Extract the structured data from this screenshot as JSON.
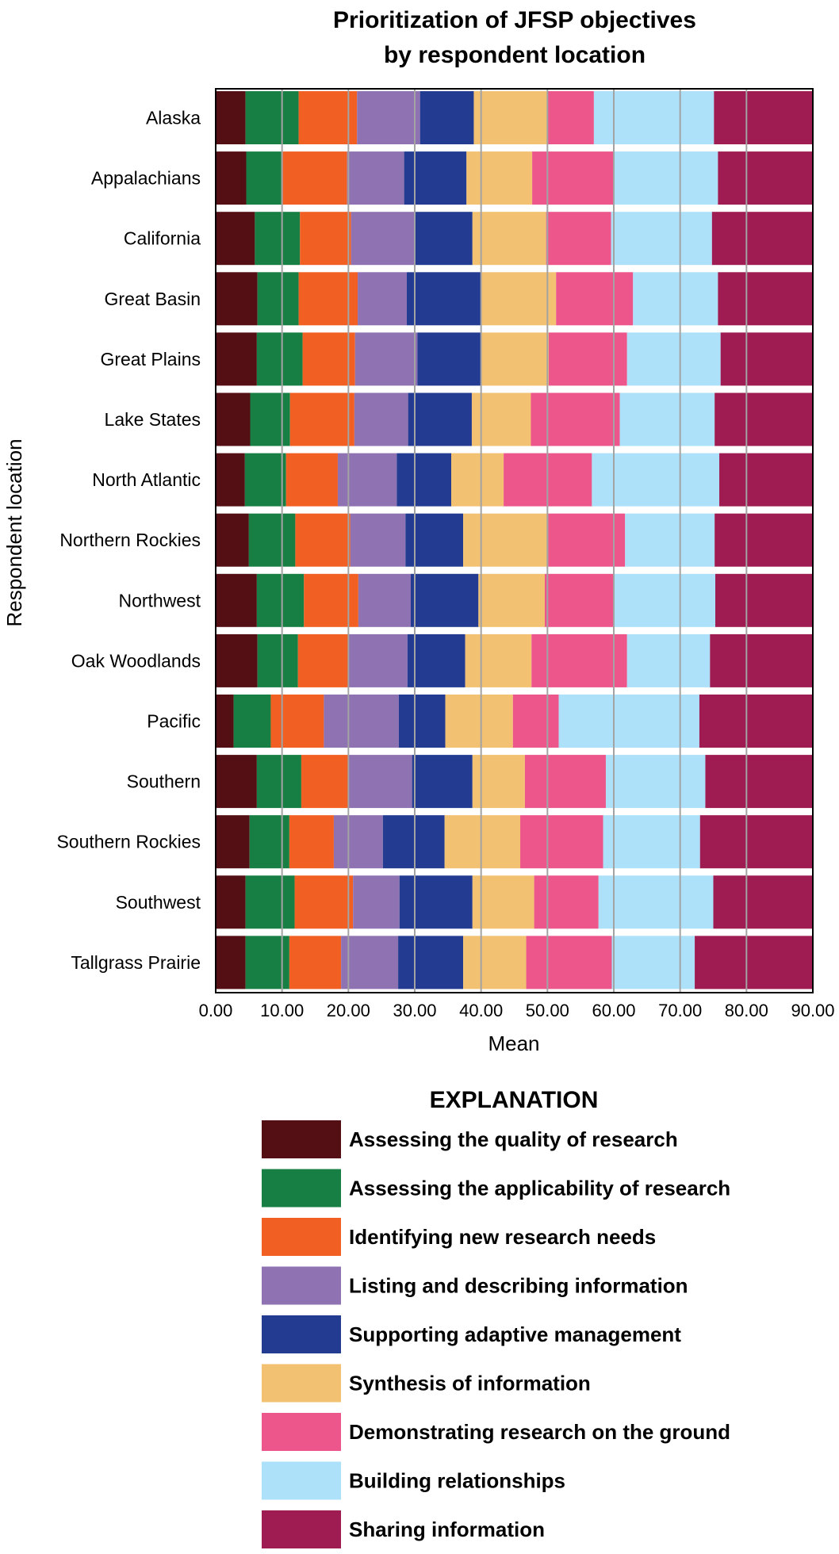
{
  "chart_data": {
    "type": "bar",
    "orientation": "horizontal",
    "stacked": true,
    "title": "Prioritization of JFSP objectives by respondent location",
    "title_lines": [
      "Prioritization of JFSP objectives",
      "by respondent location"
    ],
    "xlabel": "Mean",
    "ylabel": "Respondent location",
    "xlim": [
      0,
      90
    ],
    "xticks": [
      "0.00",
      "10.00",
      "20.00",
      "30.00",
      "40.00",
      "50.00",
      "60.00",
      "70.00",
      "80.00",
      "90.00"
    ],
    "grid": true,
    "legend_title": "EXPLANATION",
    "legend_position": "bottom",
    "categories": [
      "Alaska",
      "Appalachians",
      "California",
      "Great Basin",
      "Great Plains",
      "Lake States",
      "North Atlantic",
      "Northern Rockies",
      "Northwest",
      "Oak Woodlands",
      "Pacific",
      "Southern",
      "Southern Rockies",
      "Southwest",
      "Tallgrass Prairie"
    ],
    "series": [
      {
        "name": "Assessing the quality of research",
        "color": "#530f13",
        "values": [
          4.5,
          4.6,
          5.9,
          6.3,
          6.2,
          5.2,
          4.4,
          5.0,
          6.2,
          6.3,
          2.7,
          6.2,
          5.1,
          4.5,
          4.5
        ]
      },
      {
        "name": "Assessing the applicability of research",
        "color": "#177f43",
        "values": [
          8.0,
          5.3,
          6.8,
          6.2,
          6.9,
          6.0,
          6.2,
          7.0,
          7.1,
          6.1,
          5.6,
          6.7,
          6.0,
          7.4,
          6.6
        ]
      },
      {
        "name": "Identifying new research needs",
        "color": "#f15f22",
        "values": [
          8.8,
          9.9,
          7.7,
          8.9,
          7.9,
          9.7,
          7.8,
          8.3,
          8.2,
          7.5,
          8.0,
          7.0,
          6.7,
          8.8,
          7.8
        ]
      },
      {
        "name": "Listing and describing information",
        "color": "#8e72b1",
        "values": [
          9.5,
          8.6,
          9.7,
          7.4,
          9.4,
          8.1,
          8.9,
          8.3,
          7.9,
          9.0,
          11.3,
          9.7,
          7.4,
          7.0,
          8.6
        ]
      },
      {
        "name": "Supporting adaptive management",
        "color": "#233c91",
        "values": [
          8.1,
          9.4,
          8.6,
          11.2,
          9.6,
          9.6,
          8.2,
          8.7,
          10.2,
          8.7,
          7.0,
          9.1,
          9.3,
          11.0,
          9.8
        ]
      },
      {
        "name": "Synthesis of information",
        "color": "#f2c171",
        "values": [
          11.1,
          9.9,
          11.1,
          11.3,
          10.2,
          8.9,
          7.9,
          12.8,
          10.0,
          10.0,
          10.2,
          7.9,
          11.4,
          9.3,
          9.5
        ]
      },
      {
        "name": "Demonstrating research on the ground",
        "color": "#ec568b",
        "values": [
          7.0,
          12.4,
          9.8,
          11.6,
          11.8,
          13.4,
          13.3,
          11.6,
          10.3,
          14.4,
          6.9,
          12.2,
          12.5,
          9.7,
          12.9
        ]
      },
      {
        "name": "Building relationships",
        "color": "#ade1fa",
        "values": [
          18.1,
          15.6,
          15.2,
          12.8,
          14.1,
          14.3,
          19.2,
          13.5,
          15.4,
          12.5,
          21.2,
          15.0,
          14.6,
          17.3,
          12.5
        ]
      },
      {
        "name": "Sharing information",
        "color": "#9e1c52",
        "values": [
          14.9,
          14.3,
          15.2,
          14.3,
          13.9,
          14.8,
          14.1,
          14.8,
          14.7,
          15.5,
          17.1,
          16.2,
          17.0,
          15.0,
          17.8
        ]
      }
    ]
  }
}
